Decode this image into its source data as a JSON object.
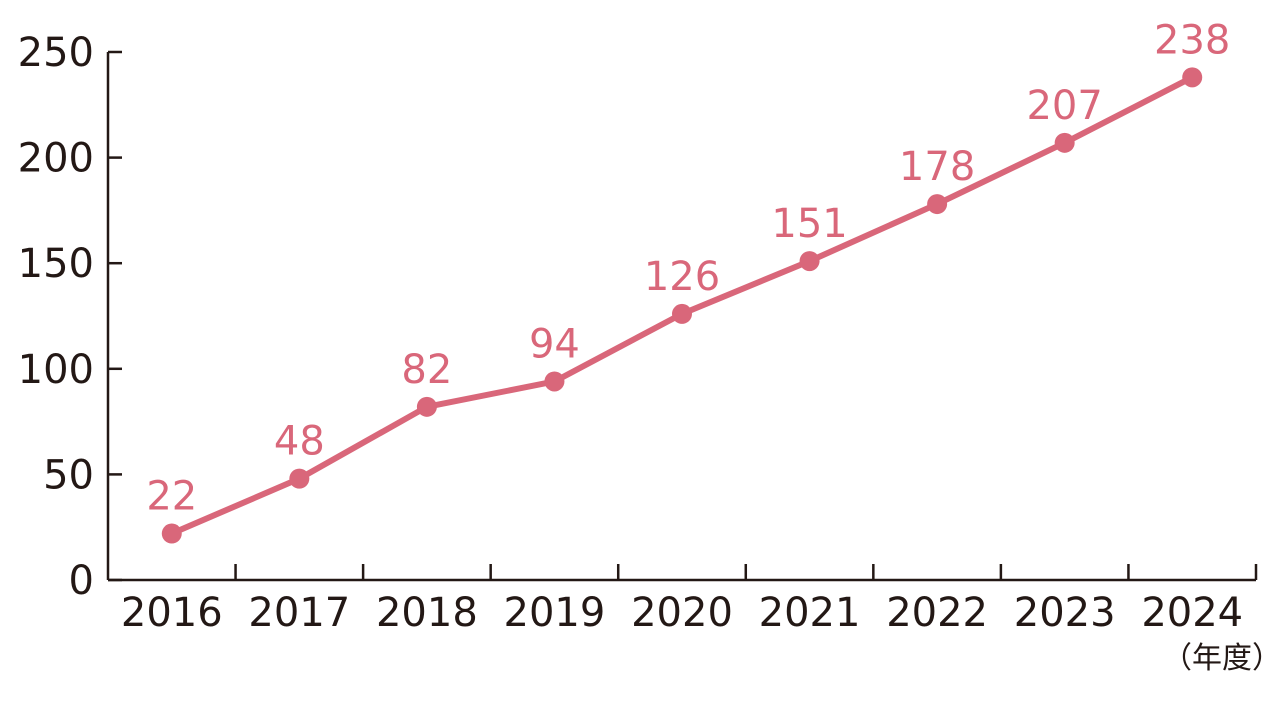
{
  "chart_data": {
    "type": "line",
    "categories": [
      "2016",
      "2017",
      "2018",
      "2019",
      "2020",
      "2021",
      "2022",
      "2023",
      "2024"
    ],
    "series": [
      {
        "values": [
          22,
          48,
          82,
          94,
          126,
          151,
          178,
          207,
          238
        ],
        "data_labels": [
          "22",
          "48",
          "82",
          "94",
          "126",
          "151",
          "178",
          "207",
          "238"
        ]
      }
    ],
    "y_ticks": [
      "0",
      "50",
      "100",
      "150",
      "200",
      "250"
    ],
    "ylim": [
      0,
      250
    ],
    "x_unit_label": "（年度）",
    "grid": false,
    "legend": "none"
  },
  "colors": {
    "series": "#d9677a",
    "axis": "#231815"
  }
}
